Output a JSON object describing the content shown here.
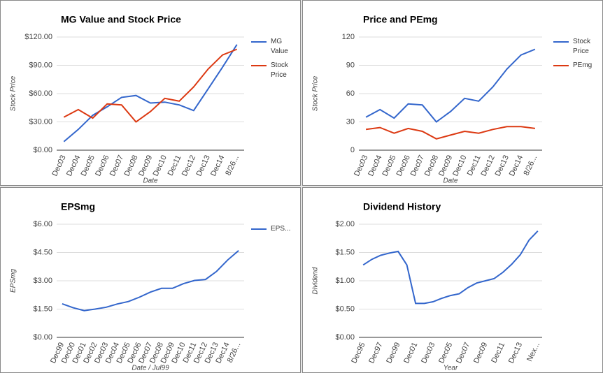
{
  "chart_data": [
    {
      "type": "line",
      "title": "MG Value and Stock Price",
      "y_label": "Stock Price",
      "x_label": "Date",
      "categories": [
        "Dec03",
        "Dec04",
        "Dec05",
        "Dec06",
        "Dec07",
        "Dec08",
        "Dec09",
        "Dec10",
        "Dec11",
        "Dec12",
        "Dec13",
        "Dec14",
        "8/26..."
      ],
      "series": [
        {
          "name": "MG Value",
          "color": "#3366cc",
          "values": [
            9,
            22,
            37,
            46,
            56,
            58,
            50,
            51,
            48,
            42,
            65,
            88,
            112
          ]
        },
        {
          "name": "Stock Price",
          "color": "#dc3912",
          "values": [
            35,
            43,
            34,
            49,
            48,
            30,
            41,
            55,
            52,
            67,
            86,
            101,
            107
          ]
        }
      ],
      "ylim": [
        0,
        120
      ],
      "yticks": [
        {
          "value": 0,
          "label": "$0.00"
        },
        {
          "value": 30,
          "label": "$30.00"
        },
        {
          "value": 60,
          "label": "$60.00"
        },
        {
          "value": 90,
          "label": "$90.00"
        },
        {
          "value": 120,
          "label": "$120.00"
        }
      ],
      "grid": true,
      "legend": "right"
    },
    {
      "type": "line",
      "title": "Price and PEmg",
      "y_label": "Stock Price",
      "x_label": "Date",
      "categories": [
        "Dec03",
        "Dec04",
        "Dec05",
        "Dec06",
        "Dec07",
        "Dec08",
        "Dec09",
        "Dec10",
        "Dec11",
        "Dec12",
        "Dec13",
        "Dec14",
        "8/26..."
      ],
      "series": [
        {
          "name": "Stock Price",
          "color": "#3366cc",
          "values": [
            35,
            43,
            34,
            49,
            48,
            30,
            41,
            55,
            52,
            67,
            86,
            101,
            107
          ]
        },
        {
          "name": "PEmg",
          "color": "#dc3912",
          "values": [
            22,
            24,
            18,
            23,
            20,
            12,
            16,
            20,
            18,
            22,
            25,
            25,
            23
          ]
        }
      ],
      "ylim": [
        0,
        120
      ],
      "yticks": [
        0,
        30,
        60,
        90,
        120
      ],
      "grid": true,
      "legend": "right"
    },
    {
      "type": "line",
      "title": "EPSmg",
      "y_label": "EPSmg",
      "x_label": "Date / Jul99",
      "categories": [
        "Dec99",
        "Dec00",
        "Dec01",
        "Dec02",
        "Dec03",
        "Dec04",
        "Dec05",
        "Dec06",
        "Dec07",
        "Dec08",
        "Dec09",
        "Dec10",
        "Dec11",
        "Dec12",
        "Dec13",
        "Dec14",
        "8/26..."
      ],
      "series": [
        {
          "name": "EPS...",
          "color": "#3366cc",
          "values": [
            1.78,
            1.57,
            1.42,
            1.5,
            1.6,
            1.77,
            1.9,
            2.13,
            2.4,
            2.6,
            2.6,
            2.85,
            3.02,
            3.07,
            3.5,
            4.1,
            4.6
          ]
        }
      ],
      "ylim": [
        0,
        6
      ],
      "yticks": [
        {
          "value": 0,
          "label": "$0.00"
        },
        {
          "value": 1.5,
          "label": "$1.50"
        },
        {
          "value": 3,
          "label": "$3.00"
        },
        {
          "value": 4.5,
          "label": "$4.50"
        },
        {
          "value": 6,
          "label": "$6.00"
        }
      ],
      "grid": true,
      "legend": "right"
    },
    {
      "type": "line",
      "title": "Dividend History",
      "y_label": "Dividend",
      "x_label": "Year",
      "categories": [
        "Dec95",
        null,
        "Dec97",
        null,
        "Dec99",
        null,
        "Dec01",
        null,
        "Dec03",
        null,
        "Dec05",
        null,
        "Dec07",
        null,
        "Dec09",
        null,
        "Dec11",
        null,
        "Dec13",
        null,
        "Nex..."
      ],
      "series": [
        {
          "color": "#3366cc",
          "values": [
            1.28,
            1.38,
            1.45,
            1.49,
            1.52,
            1.28,
            0.6,
            0.6,
            0.63,
            0.69,
            0.74,
            0.77,
            0.88,
            0.96,
            1.0,
            1.04,
            1.15,
            1.29,
            1.46,
            1.72,
            1.88
          ]
        }
      ],
      "ylim": [
        0,
        2
      ],
      "yticks": [
        {
          "value": 0,
          "label": "$0.00"
        },
        {
          "value": 0.5,
          "label": "$0.50"
        },
        {
          "value": 1,
          "label": "$1.00"
        },
        {
          "value": 1.5,
          "label": "$1.50"
        },
        {
          "value": 2,
          "label": "$2.00"
        }
      ],
      "grid": true
    }
  ]
}
